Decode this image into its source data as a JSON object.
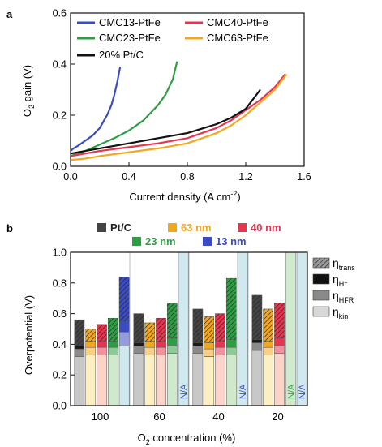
{
  "chart_data": [
    {
      "panel": "a",
      "type": "line",
      "xlabel": "Current density (A cm",
      "xlabel_sup": "-2",
      "xlabel_tail": ")",
      "ylabel_pre": "O",
      "ylabel_sub": "2",
      "ylabel_post": " gain (V)",
      "xlim": [
        0,
        1.6
      ],
      "ylim": [
        0,
        0.6
      ],
      "xticks": [
        "0.0",
        "0.4",
        "0.8",
        "1.2",
        "1.6"
      ],
      "yticks": [
        "0.0",
        "0.2",
        "0.4",
        "0.6"
      ],
      "grid": false,
      "legend": "top-left, two columns",
      "series": [
        {
          "name": "CMC13-PtFe",
          "color": "#3b4cc0",
          "points": [
            [
              0.0,
              0.06
            ],
            [
              0.02,
              0.07
            ],
            [
              0.05,
              0.08
            ],
            [
              0.1,
              0.1
            ],
            [
              0.15,
              0.12
            ],
            [
              0.2,
              0.15
            ],
            [
              0.25,
              0.2
            ],
            [
              0.28,
              0.24
            ],
            [
              0.3,
              0.28
            ],
            [
              0.32,
              0.33
            ],
            [
              0.34,
              0.39
            ]
          ]
        },
        {
          "name": "CMC23-PtFe",
          "color": "#2e9e44",
          "points": [
            [
              0.0,
              0.04
            ],
            [
              0.05,
              0.05
            ],
            [
              0.1,
              0.06
            ],
            [
              0.2,
              0.085
            ],
            [
              0.3,
              0.11
            ],
            [
              0.4,
              0.14
            ],
            [
              0.5,
              0.18
            ],
            [
              0.6,
              0.24
            ],
            [
              0.65,
              0.28
            ],
            [
              0.7,
              0.34
            ],
            [
              0.73,
              0.41
            ]
          ]
        },
        {
          "name": "CMC40-PtFe",
          "color": "#e8344e",
          "points": [
            [
              0.0,
              0.04
            ],
            [
              0.1,
              0.05
            ],
            [
              0.2,
              0.06
            ],
            [
              0.4,
              0.075
            ],
            [
              0.6,
              0.09
            ],
            [
              0.8,
              0.11
            ],
            [
              1.0,
              0.15
            ],
            [
              1.1,
              0.18
            ],
            [
              1.2,
              0.22
            ],
            [
              1.3,
              0.26
            ],
            [
              1.4,
              0.31
            ],
            [
              1.47,
              0.36
            ]
          ]
        },
        {
          "name": "CMC63-PtFe",
          "color": "#f2a71f",
          "points": [
            [
              0.0,
              0.025
            ],
            [
              0.1,
              0.03
            ],
            [
              0.2,
              0.04
            ],
            [
              0.4,
              0.055
            ],
            [
              0.6,
              0.07
            ],
            [
              0.8,
              0.09
            ],
            [
              1.0,
              0.13
            ],
            [
              1.1,
              0.16
            ],
            [
              1.2,
              0.2
            ],
            [
              1.3,
              0.25
            ],
            [
              1.4,
              0.3
            ],
            [
              1.48,
              0.36
            ]
          ]
        },
        {
          "name": "20% Pt/C",
          "color": "#111111",
          "points": [
            [
              0.0,
              0.05
            ],
            [
              0.1,
              0.06
            ],
            [
              0.2,
              0.07
            ],
            [
              0.4,
              0.09
            ],
            [
              0.6,
              0.11
            ],
            [
              0.8,
              0.13
            ],
            [
              1.0,
              0.165
            ],
            [
              1.1,
              0.19
            ],
            [
              1.2,
              0.225
            ],
            [
              1.3,
              0.3
            ]
          ]
        }
      ]
    },
    {
      "panel": "b",
      "type": "bar",
      "ylabel": "Overpotential (V)",
      "xlabel_pre": "O",
      "xlabel_sub": "2",
      "xlabel_post": " concentration (%)",
      "ylim": [
        0,
        1.0
      ],
      "yticks": [
        "0.0",
        "0.2",
        "0.4",
        "0.6",
        "0.8",
        "1.0"
      ],
      "categories": [
        "100",
        "60",
        "40",
        "20"
      ],
      "grid": false,
      "legend_top": [
        {
          "label": "Pt/C",
          "color": "#444444",
          "text_color": "#222222"
        },
        {
          "label": "63 nm",
          "color": "#f2a71f",
          "text_color": "#f2a71f"
        },
        {
          "label": "40 nm",
          "color": "#e8344e",
          "text_color": "#e8344e"
        },
        {
          "label": "23 nm",
          "color": "#2e9e44",
          "text_color": "#2e9e44"
        },
        {
          "label": "13 nm",
          "color": "#3b4cc0",
          "text_color": "#3b4cc0"
        }
      ],
      "components": [
        {
          "base": "η",
          "sub": "trans",
          "key": "trans"
        },
        {
          "base": "η",
          "sub": "H⁺",
          "key": "h"
        },
        {
          "base": "η",
          "sub": "HFR",
          "key": "hfr"
        },
        {
          "base": "η",
          "sub": "kin",
          "key": "kin"
        }
      ],
      "na_label": "N/A",
      "materials": [
        {
          "name": "Pt/C",
          "kin_color": "#c8c8c8",
          "top_color": "#444444"
        },
        {
          "name": "63 nm",
          "kin_color": "#fcf0c2",
          "top_color": "#f2a71f"
        },
        {
          "name": "40 nm",
          "kin_color": "#fcd3c9",
          "top_color": "#e8344e"
        },
        {
          "name": "23 nm",
          "kin_color": "#cfe9cc",
          "top_color": "#2e9e44"
        },
        {
          "name": "13 nm",
          "kin_color": "#cfe9ef",
          "top_color": "#3b4cc0"
        }
      ],
      "groups": [
        {
          "category": "100",
          "bars": [
            {
              "material": "Pt/C",
              "kin": 0.32,
              "hfr": 0.05,
              "h": 0.02,
              "trans": 0.17
            },
            {
              "material": "63 nm",
              "kin": 0.33,
              "hfr": 0.05,
              "h": 0.04,
              "trans": 0.08
            },
            {
              "material": "40 nm",
              "kin": 0.33,
              "hfr": 0.05,
              "h": 0.04,
              "trans": 0.11
            },
            {
              "material": "23 nm",
              "kin": 0.33,
              "hfr": 0.05,
              "h": 0.04,
              "trans": 0.15
            },
            {
              "material": "13 nm",
              "kin": 0.39,
              "hfr": 0.09,
              "h": 0.07,
              "trans": 0.29
            }
          ]
        },
        {
          "category": "60",
          "bars": [
            {
              "material": "Pt/C",
              "kin": 0.34,
              "hfr": 0.05,
              "h": 0.02,
              "trans": 0.19
            },
            {
              "material": "63 nm",
              "kin": 0.33,
              "hfr": 0.05,
              "h": 0.04,
              "trans": 0.12
            },
            {
              "material": "40 nm",
              "kin": 0.33,
              "hfr": 0.05,
              "h": 0.04,
              "trans": 0.15
            },
            {
              "material": "23 nm",
              "kin": 0.34,
              "hfr": 0.05,
              "h": 0.05,
              "trans": 0.23
            },
            {
              "material": "13 nm",
              "na": true
            }
          ]
        },
        {
          "category": "40",
          "bars": [
            {
              "material": "Pt/C",
              "kin": 0.34,
              "hfr": 0.05,
              "h": 0.02,
              "trans": 0.22
            },
            {
              "material": "63 nm",
              "kin": 0.32,
              "hfr": 0.05,
              "h": 0.04,
              "trans": 0.17
            },
            {
              "material": "40 nm",
              "kin": 0.33,
              "hfr": 0.05,
              "h": 0.04,
              "trans": 0.18
            },
            {
              "material": "23 nm",
              "kin": 0.33,
              "hfr": 0.05,
              "h": 0.05,
              "trans": 0.4
            },
            {
              "material": "13 nm",
              "na": true
            }
          ]
        },
        {
          "category": "20",
          "bars": [
            {
              "material": "Pt/C",
              "kin": 0.36,
              "hfr": 0.05,
              "h": 0.02,
              "trans": 0.29
            },
            {
              "material": "63 nm",
              "kin": 0.33,
              "hfr": 0.05,
              "h": 0.04,
              "trans": 0.21
            },
            {
              "material": "40 nm",
              "kin": 0.34,
              "hfr": 0.05,
              "h": 0.05,
              "trans": 0.23
            },
            {
              "material": "23 nm",
              "na": true
            },
            {
              "material": "13 nm",
              "na": true
            }
          ]
        }
      ]
    }
  ]
}
